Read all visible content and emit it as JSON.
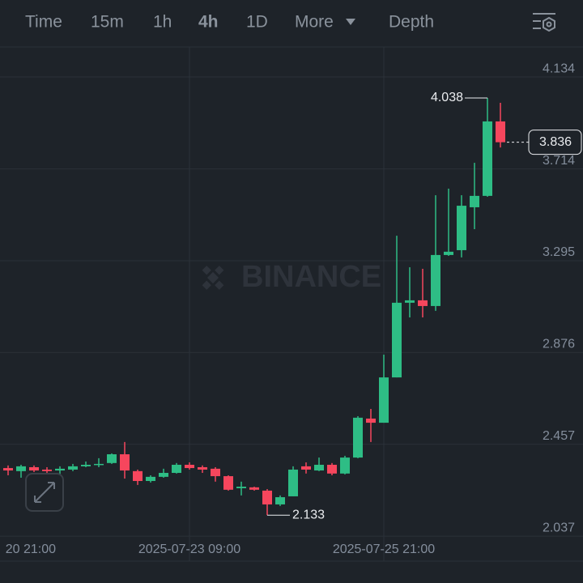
{
  "toolbar": {
    "items": [
      "Time",
      "15m",
      "1h",
      "4h",
      "1D",
      "More",
      "Depth"
    ],
    "active": "4h"
  },
  "watermark": "BINANCE",
  "chart_data": {
    "type": "candlestick",
    "up_color": "#2ebd85",
    "down_color": "#f6465d",
    "grid": true,
    "categories": [
      "20 21:00",
      null,
      null,
      null,
      null,
      null,
      null,
      null,
      null,
      null,
      null,
      null,
      null,
      null,
      null,
      "2025-07-23 09:00",
      null,
      null,
      null,
      null,
      null,
      null,
      null,
      null,
      null,
      null,
      null,
      null,
      null,
      null,
      "2025-07-25 21:00",
      null,
      null,
      null,
      null,
      null,
      null,
      null,
      null,
      null
    ],
    "open": [
      null,
      2.348,
      2.334,
      2.352,
      2.341,
      2.337,
      2.341,
      2.356,
      2.363,
      2.371,
      2.411,
      2.334,
      2.289,
      2.308,
      2.326,
      2.363,
      2.352,
      2.345,
      2.311,
      2.256,
      2.26,
      2.245,
      2.182,
      2.219,
      2.356,
      2.337,
      2.363,
      2.323,
      2.396,
      2.574,
      2.555,
      2.762,
      3.103,
      3.114,
      3.088,
      3.321,
      3.343,
      3.539,
      3.591,
      3.931
    ],
    "high": [
      null,
      2.36,
      2.363,
      2.36,
      2.352,
      2.356,
      2.367,
      2.378,
      2.393,
      2.415,
      2.467,
      2.341,
      2.315,
      2.345,
      2.371,
      2.374,
      2.36,
      2.352,
      2.315,
      2.286,
      2.263,
      2.252,
      2.223,
      2.356,
      2.374,
      2.396,
      2.371,
      2.404,
      2.585,
      2.618,
      2.866,
      3.409,
      3.265,
      3.258,
      3.594,
      3.624,
      3.594,
      3.742,
      4.038,
      4.016
    ],
    "low": [
      null,
      2.315,
      2.304,
      2.33,
      2.319,
      2.319,
      2.334,
      2.352,
      2.352,
      2.367,
      2.3,
      2.271,
      2.282,
      2.304,
      2.323,
      2.341,
      2.326,
      2.286,
      2.245,
      2.223,
      2.245,
      2.133,
      2.175,
      2.219,
      2.323,
      2.334,
      2.315,
      2.319,
      2.393,
      2.467,
      2.555,
      2.762,
      3.036,
      3.036,
      3.066,
      3.317,
      3.31,
      3.439,
      3.587,
      3.812
    ],
    "close": [
      null,
      2.337,
      2.356,
      2.337,
      2.334,
      2.345,
      2.356,
      2.363,
      2.367,
      2.411,
      2.337,
      2.289,
      2.308,
      2.326,
      2.363,
      2.348,
      2.341,
      2.311,
      2.249,
      2.263,
      2.249,
      2.182,
      2.215,
      2.341,
      2.341,
      2.363,
      2.323,
      2.396,
      2.578,
      2.555,
      2.762,
      3.103,
      3.114,
      3.088,
      3.321,
      3.336,
      3.546,
      3.591,
      3.931,
      3.836
    ],
    "ylim": [
      1.923,
      4.271
    ],
    "yticks": [
      2.037,
      2.457,
      2.876,
      3.295,
      3.714,
      4.134
    ]
  }
}
